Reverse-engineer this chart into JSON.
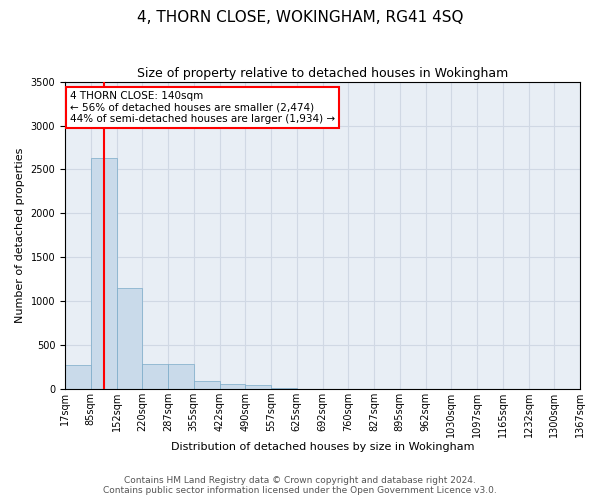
{
  "title": "4, THORN CLOSE, WOKINGHAM, RG41 4SQ",
  "subtitle": "Size of property relative to detached houses in Wokingham",
  "xlabel": "Distribution of detached houses by size in Wokingham",
  "ylabel": "Number of detached properties",
  "bar_values": [
    270,
    2630,
    1150,
    280,
    280,
    90,
    50,
    40,
    5,
    0,
    0,
    0,
    0,
    0,
    0,
    0,
    0,
    0,
    0,
    0
  ],
  "x_labels": [
    "17sqm",
    "85sqm",
    "152sqm",
    "220sqm",
    "287sqm",
    "355sqm",
    "422sqm",
    "490sqm",
    "557sqm",
    "625sqm",
    "692sqm",
    "760sqm",
    "827sqm",
    "895sqm",
    "962sqm",
    "1030sqm",
    "1097sqm",
    "1165sqm",
    "1232sqm",
    "1300sqm",
    "1367sqm"
  ],
  "bar_color": "#c9daea",
  "bar_edge_color": "#7aaac8",
  "ylim": [
    0,
    3500
  ],
  "yticks": [
    0,
    500,
    1000,
    1500,
    2000,
    2500,
    3000,
    3500
  ],
  "red_line_x": 1.5,
  "annotation_line1": "4 THORN CLOSE: 140sqm",
  "annotation_line2": "← 56% of detached houses are smaller (2,474)",
  "annotation_line3": "44% of semi-detached houses are larger (1,934) →",
  "footer_line1": "Contains HM Land Registry data © Crown copyright and database right 2024.",
  "footer_line2": "Contains public sector information licensed under the Open Government Licence v3.0.",
  "background_color": "#e8eef5",
  "grid_color": "#d0d8e4",
  "title_fontsize": 11,
  "subtitle_fontsize": 9,
  "axis_label_fontsize": 8,
  "tick_fontsize": 7,
  "annotation_fontsize": 7.5,
  "footer_fontsize": 6.5
}
